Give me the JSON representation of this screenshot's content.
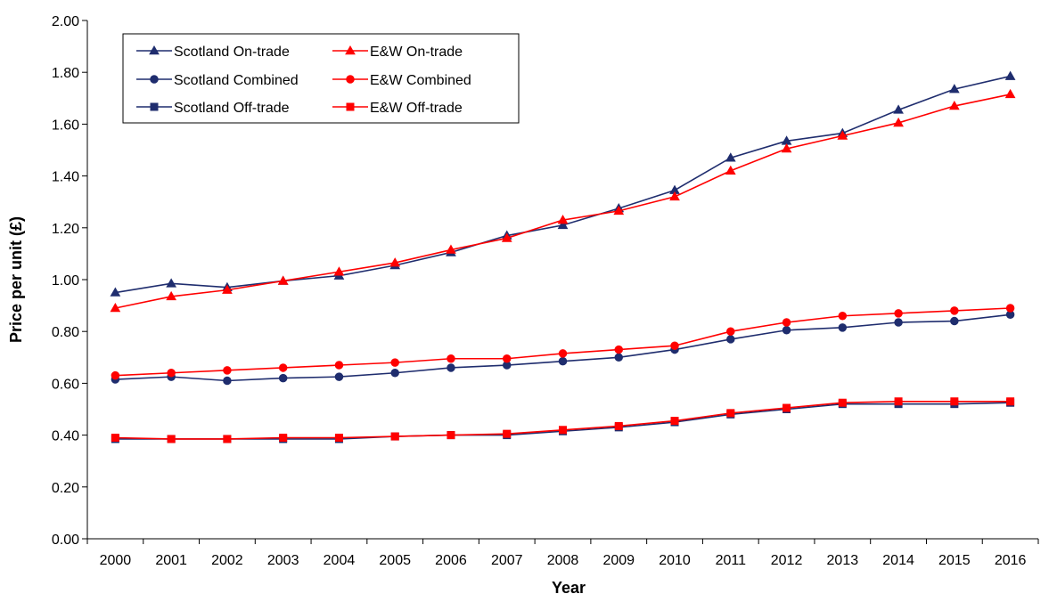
{
  "chart_data": {
    "type": "line",
    "xlabel": "Year",
    "ylabel": "Price per unit (£)",
    "ylim": [
      0,
      2
    ],
    "y_ticks": [
      "0.00",
      "0.20",
      "0.40",
      "0.60",
      "0.80",
      "1.00",
      "1.20",
      "1.40",
      "1.60",
      "1.80",
      "2.00"
    ],
    "categories": [
      "2000",
      "2001",
      "2002",
      "2003",
      "2004",
      "2005",
      "2006",
      "2007",
      "2008",
      "2009",
      "2010",
      "2011",
      "2012",
      "2013",
      "2014",
      "2015",
      "2016"
    ],
    "grid": false,
    "legend_position": "top-left",
    "series": [
      {
        "name": "Scotland On-trade",
        "color": "#1F2D6E",
        "marker": "triangle",
        "values": [
          0.95,
          0.985,
          0.97,
          0.995,
          1.015,
          1.055,
          1.105,
          1.17,
          1.21,
          1.275,
          1.345,
          1.47,
          1.535,
          1.565,
          1.655,
          1.735,
          1.785
        ]
      },
      {
        "name": "E&W On-trade",
        "color": "#FF0000",
        "marker": "triangle",
        "values": [
          0.89,
          0.935,
          0.96,
          0.995,
          1.03,
          1.065,
          1.115,
          1.16,
          1.23,
          1.265,
          1.32,
          1.42,
          1.505,
          1.555,
          1.605,
          1.67,
          1.715
        ]
      },
      {
        "name": "Scotland Combined",
        "color": "#1F2D6E",
        "marker": "circle",
        "values": [
          0.615,
          0.625,
          0.61,
          0.62,
          0.625,
          0.64,
          0.66,
          0.67,
          0.685,
          0.7,
          0.73,
          0.77,
          0.805,
          0.815,
          0.835,
          0.84,
          0.865
        ]
      },
      {
        "name": "E&W Combined",
        "color": "#FF0000",
        "marker": "circle",
        "values": [
          0.63,
          0.64,
          0.65,
          0.66,
          0.67,
          0.68,
          0.695,
          0.695,
          0.715,
          0.73,
          0.745,
          0.8,
          0.835,
          0.86,
          0.87,
          0.88,
          0.89
        ]
      },
      {
        "name": "Scotland Off-trade",
        "color": "#1F2D6E",
        "marker": "square",
        "values": [
          0.385,
          0.385,
          0.385,
          0.385,
          0.385,
          0.395,
          0.4,
          0.4,
          0.415,
          0.43,
          0.45,
          0.48,
          0.5,
          0.52,
          0.52,
          0.52,
          0.525
        ]
      },
      {
        "name": "E&W Off-trade",
        "color": "#FF0000",
        "marker": "square",
        "values": [
          0.39,
          0.385,
          0.385,
          0.39,
          0.39,
          0.395,
          0.4,
          0.405,
          0.42,
          0.435,
          0.455,
          0.485,
          0.505,
          0.525,
          0.53,
          0.53,
          0.53
        ]
      }
    ],
    "legend": {
      "rows": [
        [
          "Scotland On-trade",
          "E&W On-trade"
        ],
        [
          "Scotland Combined",
          "E&W Combined"
        ],
        [
          "Scotland Off-trade",
          "E&W Off-trade"
        ]
      ]
    }
  }
}
